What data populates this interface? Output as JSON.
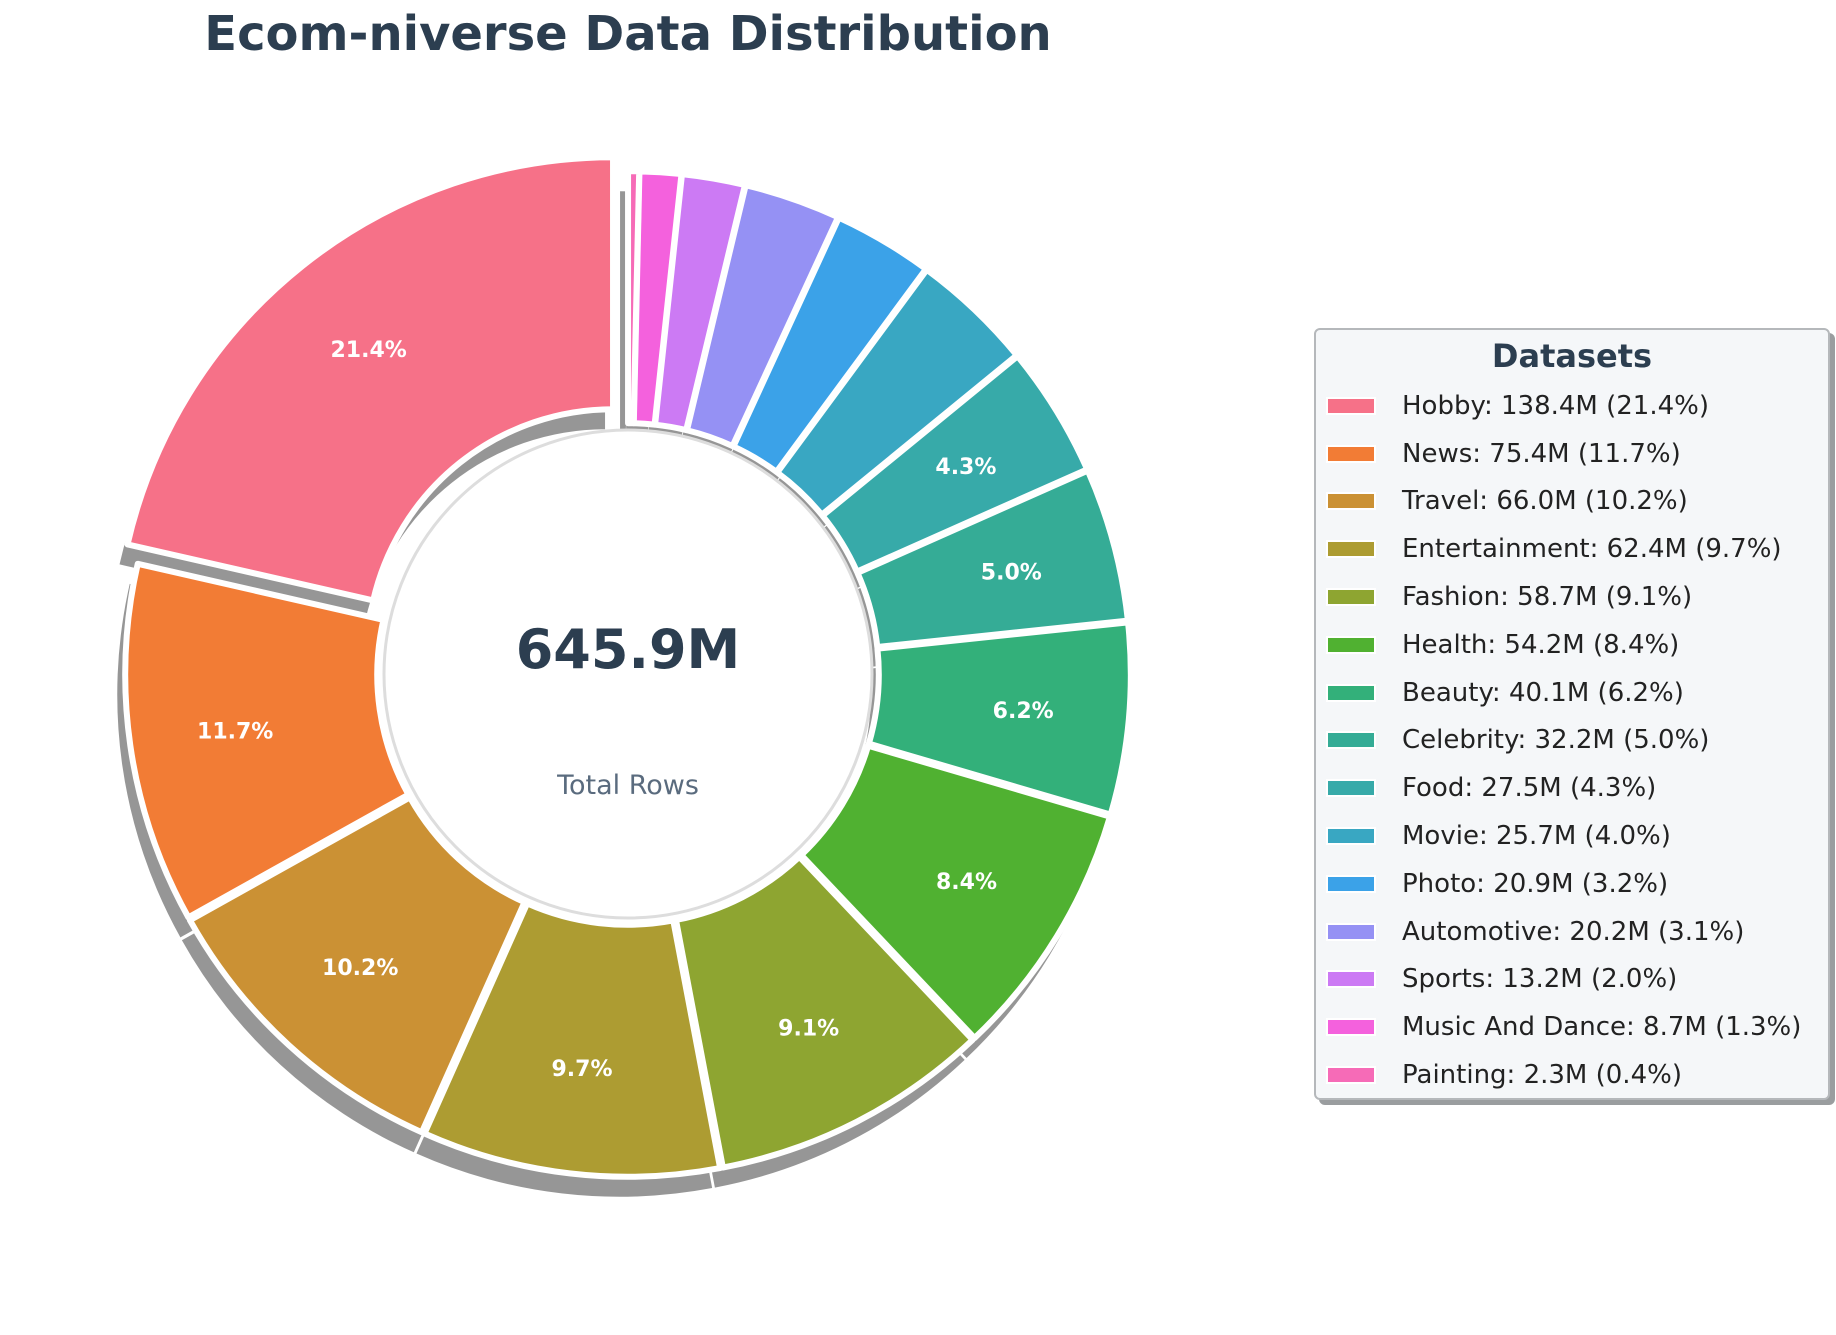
{
  "chart_data": {
    "type": "pie",
    "title": "Ecom-niverse Data Distribution",
    "center_value": "645.9M",
    "center_label": "Total Rows",
    "legend_title": "Datasets",
    "legend_position": "right",
    "unit": "M",
    "slices": [
      {
        "name": "Hobby",
        "value": 138.4,
        "percent": 21.4,
        "slice_label": "21.4%",
        "legend_label": "Hobby: 138.4M (21.4%)",
        "color": "#f67188"
      },
      {
        "name": "News",
        "value": 75.4,
        "percent": 11.7,
        "slice_label": "11.7%",
        "legend_label": "News: 75.4M (11.7%)",
        "color": "#f27c35"
      },
      {
        "name": "Travel",
        "value": 66.0,
        "percent": 10.2,
        "slice_label": "10.2%",
        "legend_label": "Travel: 66.0M (10.2%)",
        "color": "#cb9134"
      },
      {
        "name": "Entertainment",
        "value": 62.4,
        "percent": 9.7,
        "slice_label": "9.7%",
        "legend_label": "Entertainment: 62.4M (9.7%)",
        "color": "#ad9c32"
      },
      {
        "name": "Fashion",
        "value": 58.7,
        "percent": 9.1,
        "slice_label": "9.1%",
        "legend_label": "Fashion: 58.7M (9.1%)",
        "color": "#8ea531"
      },
      {
        "name": "Health",
        "value": 54.2,
        "percent": 8.4,
        "slice_label": "8.4%",
        "legend_label": "Health: 54.2M (8.4%)",
        "color": "#50b131"
      },
      {
        "name": "Beauty",
        "value": 40.1,
        "percent": 6.2,
        "slice_label": "6.2%",
        "legend_label": "Beauty: 40.1M (6.2%)",
        "color": "#33b07a"
      },
      {
        "name": "Celebrity",
        "value": 32.2,
        "percent": 5.0,
        "slice_label": "5.0%",
        "legend_label": "Celebrity: 32.2M (5.0%)",
        "color": "#35ac96"
      },
      {
        "name": "Food",
        "value": 27.5,
        "percent": 4.3,
        "slice_label": "4.3%",
        "legend_label": "Food: 27.5M (4.3%)",
        "color": "#37aaa9"
      },
      {
        "name": "Movie",
        "value": 25.7,
        "percent": 4.0,
        "slice_label": "",
        "legend_label": "Movie: 25.7M (4.0%)",
        "color": "#39a7c2"
      },
      {
        "name": "Photo",
        "value": 20.9,
        "percent": 3.2,
        "slice_label": "",
        "legend_label": "Photo: 20.9M (3.2%)",
        "color": "#3ba2e8"
      },
      {
        "name": "Automotive",
        "value": 20.2,
        "percent": 3.1,
        "slice_label": "",
        "legend_label": "Automotive: 20.2M (3.1%)",
        "color": "#9591f4"
      },
      {
        "name": "Sports",
        "value": 13.2,
        "percent": 2.0,
        "slice_label": "",
        "legend_label": "Sports: 13.2M (2.0%)",
        "color": "#cc7af4"
      },
      {
        "name": "Music And Dance",
        "value": 8.7,
        "percent": 1.3,
        "slice_label": "",
        "legend_label": "Music And Dance: 8.7M (1.3%)",
        "color": "#f461dd"
      },
      {
        "name": "Painting",
        "value": 2.3,
        "percent": 0.4,
        "slice_label": "",
        "legend_label": "Painting: 2.3M (0.4%)",
        "color": "#f66bb7"
      }
    ]
  }
}
